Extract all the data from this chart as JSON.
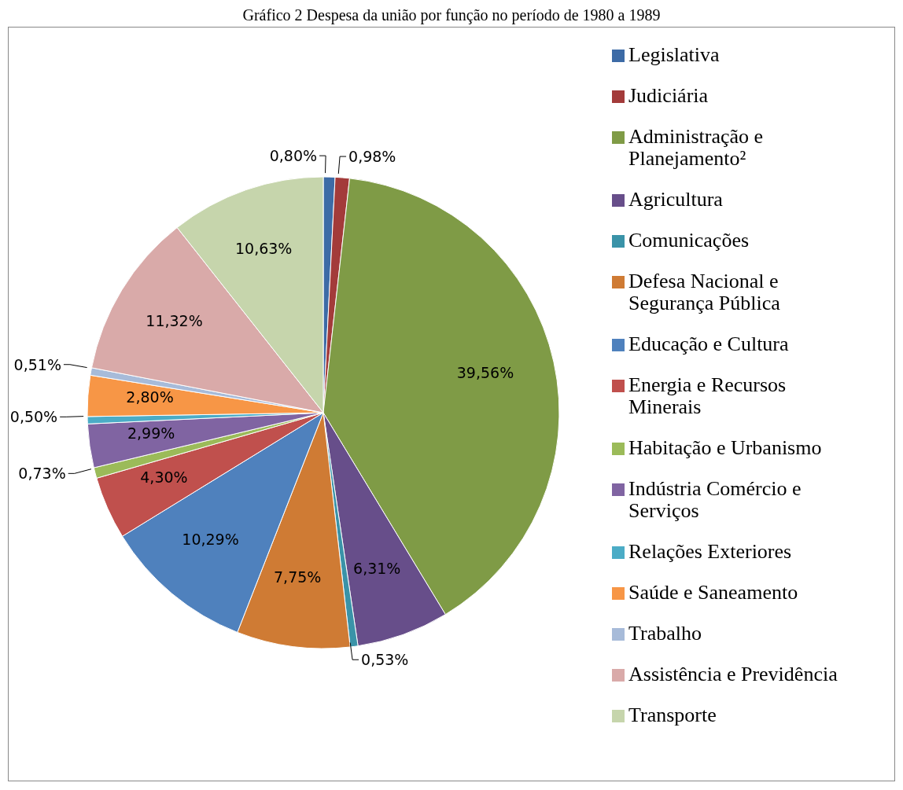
{
  "chart_data": {
    "type": "pie",
    "title": "Gráfico 2 Despesa da união por função no período de 1980 a 1989",
    "categories": [
      "Legislativa",
      "Judiciária",
      "Administração e Planejamento²",
      "Agricultura",
      "Comunicações",
      "Defesa Nacional e Segurança Pública",
      "Educação e Cultura",
      "Energia e Recursos Minerais",
      "Habitação e Urbanismo",
      "Indústria Comércio e Serviços",
      "Relações Exteriores",
      "Saúde e Saneamento",
      "Trabalho",
      "Assistência e Previdência",
      "Transporte"
    ],
    "values": [
      0.8,
      0.98,
      39.56,
      6.31,
      0.53,
      7.75,
      10.29,
      4.3,
      0.73,
      2.99,
      0.5,
      2.8,
      0.51,
      11.32,
      10.63
    ],
    "value_labels": [
      "0,80%",
      "0,98%",
      "39,56%",
      "6,31%",
      "0,53%",
      "7,75%",
      "10,29%",
      "4,30%",
      "0,73%",
      "2,99%",
      "0,50%",
      "2,80%",
      "0,51%",
      "11,32%",
      "10,63%"
    ],
    "colors": [
      "#3d6ba6",
      "#a33b3a",
      "#7f9b46",
      "#674e8a",
      "#3a93a8",
      "#cf7b34",
      "#4f81bd",
      "#c0504d",
      "#9bbb59",
      "#8064a2",
      "#4bacc6",
      "#f79646",
      "#a7bbd9",
      "#d9aaa9",
      "#c6d5ac"
    ],
    "legend": "right"
  }
}
